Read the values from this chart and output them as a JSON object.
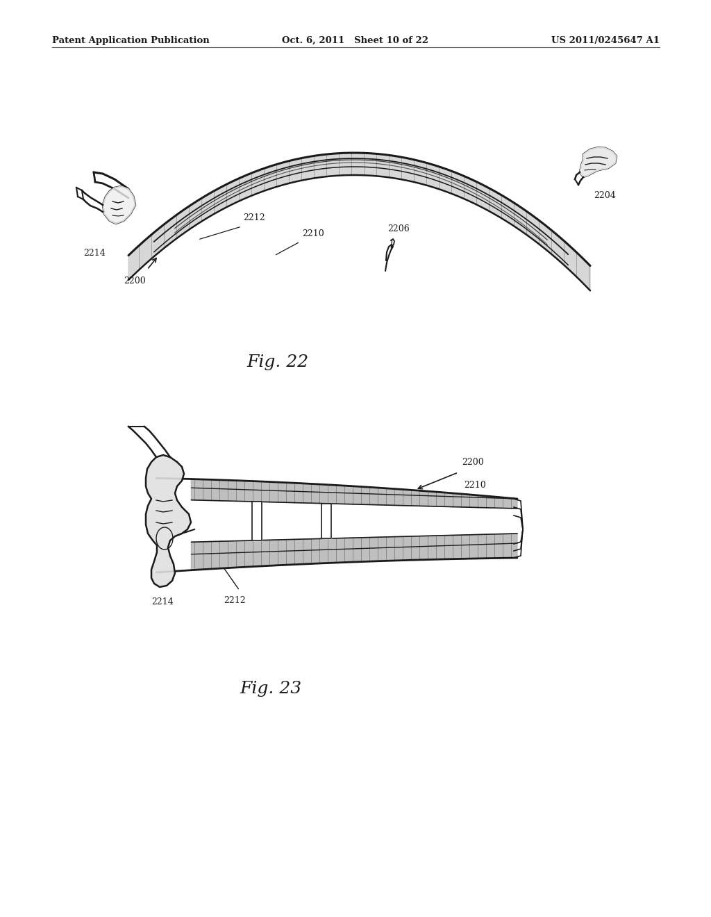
{
  "background_color": "#ffffff",
  "header_left": "Patent Application Publication",
  "header_center": "Oct. 6, 2011   Sheet 10 of 22",
  "header_right": "US 2011/0245647 A1",
  "fig22_caption": "Fig. 22",
  "fig23_caption": "Fig. 23",
  "line_color": "#1a1a1a",
  "text_color": "#1a1a1a",
  "header_fontsize": 9.5,
  "label_fontsize": 9,
  "caption_fontsize": 18
}
